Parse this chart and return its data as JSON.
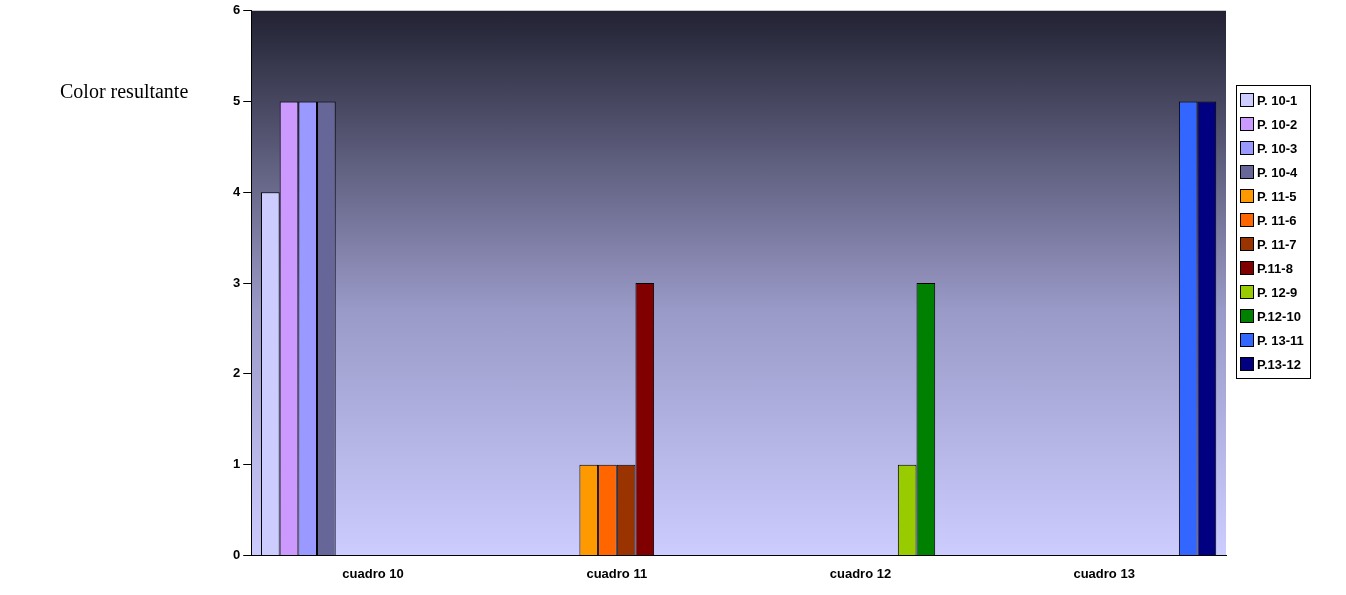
{
  "chart_data": {
    "type": "bar",
    "ylabel": "Color resultante",
    "categories": [
      "cuadro 10",
      "cuadro 11",
      "cuadro 12",
      "cuadro 13"
    ],
    "series": [
      {
        "name": "P. 10-1",
        "color": "#ccccff",
        "values": [
          4,
          null,
          null,
          null
        ]
      },
      {
        "name": "P. 10-2",
        "color": "#cc99ff",
        "values": [
          5,
          null,
          null,
          null
        ]
      },
      {
        "name": "P. 10-3",
        "color": "#9999ff",
        "values": [
          5,
          null,
          null,
          null
        ]
      },
      {
        "name": "P. 10-4",
        "color": "#666699",
        "values": [
          5,
          null,
          null,
          null
        ]
      },
      {
        "name": "P. 11-5",
        "color": "#ff9900",
        "values": [
          null,
          1,
          null,
          null
        ]
      },
      {
        "name": "P. 11-6",
        "color": "#ff6600",
        "values": [
          null,
          1,
          null,
          null
        ]
      },
      {
        "name": "P. 11-7",
        "color": "#993300",
        "values": [
          null,
          1,
          null,
          null
        ]
      },
      {
        "name": "P.11-8",
        "color": "#800000",
        "values": [
          null,
          3,
          null,
          null
        ]
      },
      {
        "name": "P. 12-9",
        "color": "#99cc00",
        "values": [
          null,
          null,
          1,
          null
        ]
      },
      {
        "name": "P.12-10",
        "color": "#008000",
        "values": [
          null,
          null,
          3,
          null
        ]
      },
      {
        "name": "P. 13-11",
        "color": "#3366ff",
        "values": [
          null,
          null,
          null,
          5
        ]
      },
      {
        "name": "P.13-12",
        "color": "#000080",
        "values": [
          null,
          null,
          null,
          5
        ]
      }
    ],
    "ylim": [
      0,
      6
    ],
    "yticks": [
      0,
      1,
      2,
      3,
      4,
      5,
      6
    ],
    "grid": false,
    "legend": "right"
  }
}
